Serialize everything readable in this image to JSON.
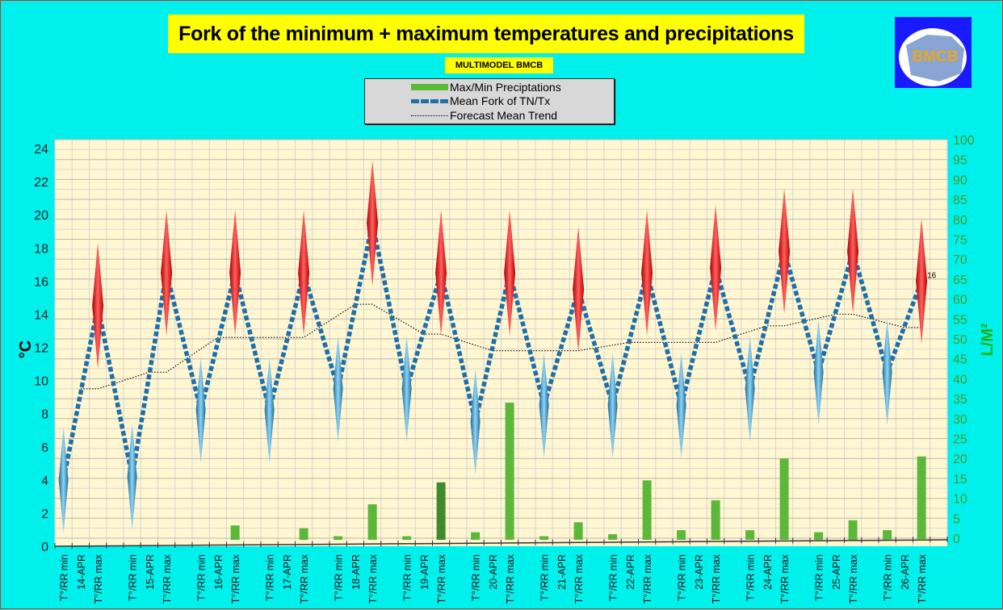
{
  "header": {
    "title": "Fork of the minimum + maximum temperatures and precipitations",
    "subtitle": "MULTIMODEL BMCB",
    "logo_text": "BMCB"
  },
  "legend": {
    "items": [
      {
        "label": "Max/Min Preciptations",
        "color": "#5cb83a"
      },
      {
        "label": "Mean Fork of TN/Tx",
        "color": "#1f6fa8"
      },
      {
        "label": "Forecast Mean Trend",
        "color": "#000000"
      }
    ]
  },
  "chart_data": {
    "type": "line",
    "title": "Fork of the minimum + maximum temperatures and precipitations",
    "ylabel": "°C",
    "y2label": "L/M²",
    "ylim": [
      0,
      24
    ],
    "y2lim": [
      0,
      100
    ],
    "yticks": [
      "0",
      "2",
      "4",
      "6",
      "8",
      "10",
      "12",
      "14",
      "16",
      "18",
      "20",
      "22",
      "24"
    ],
    "y2ticks": [
      "0",
      "5",
      "10",
      "15",
      "20",
      "25",
      "30",
      "35",
      "40",
      "45",
      "50",
      "55",
      "60",
      "65",
      "70",
      "75",
      "80",
      "85",
      "90",
      "95",
      "100"
    ],
    "grid": true,
    "min_label": "T°/RR min",
    "max_label": "T°/RR max",
    "dates": [
      "14-APR",
      "15-APR",
      "16-APR",
      "17-APR",
      "18-APR",
      "19-APR",
      "20-APR",
      "21-APR",
      "22-APR",
      "23-APR",
      "24-APR",
      "25-APR",
      "26-APR"
    ],
    "tmin": [
      4.0,
      4.2,
      8.2,
      8.2,
      9.5,
      9.5,
      7.5,
      8.5,
      8.5,
      8.5,
      9.5,
      10.5,
      10.5
    ],
    "tmax": [
      14.5,
      16.5,
      16.5,
      16.5,
      19.5,
      16.5,
      16.5,
      15.5,
      16.5,
      16.8,
      17.8,
      17.8,
      16.0
    ],
    "trend": [
      9.5,
      10.5,
      12.6,
      12.6,
      14.6,
      12.8,
      11.8,
      11.8,
      12.3,
      12.3,
      13.3,
      14.0,
      13.2
    ],
    "precip_min": [
      0,
      0,
      0,
      0,
      0.5,
      0.5,
      1.5,
      0.5,
      1,
      2,
      2,
      1.5,
      2
    ],
    "precip_max": [
      0,
      0,
      3.2,
      2.5,
      8.5,
      14,
      34,
      4,
      14.5,
      9.5,
      20,
      4.5,
      20.5
    ],
    "last_label": "16"
  }
}
